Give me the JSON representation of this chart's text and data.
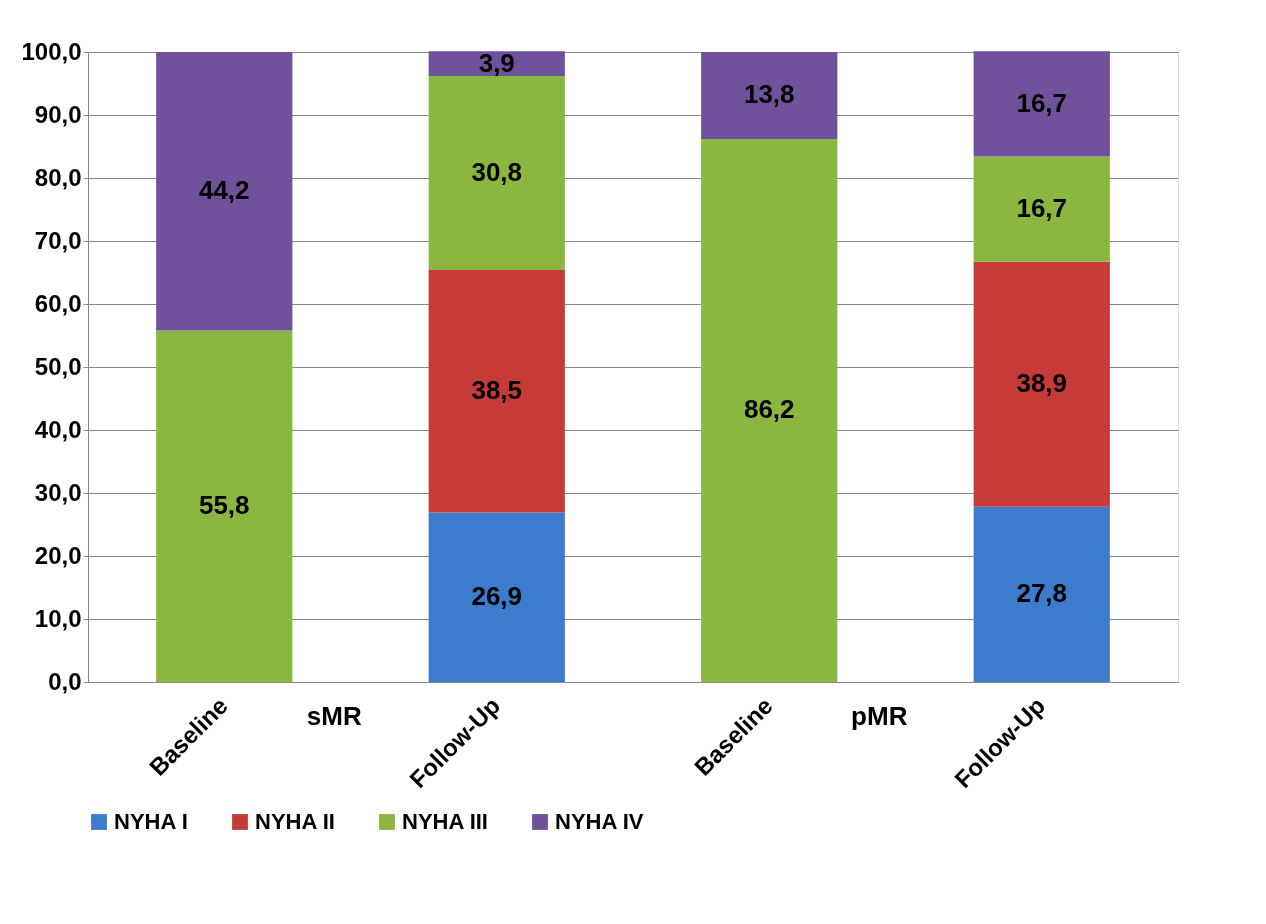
{
  "chart_data": {
    "type": "bar",
    "stacked": true,
    "categories": [
      "Baseline",
      "Follow-Up",
      "Baseline",
      "Follow-Up"
    ],
    "series": [
      {
        "name": "NYHA I",
        "color": "#3d7bcc",
        "values": [
          null,
          26.9,
          null,
          27.8
        ],
        "value_labels": [
          null,
          "26,9",
          null,
          "27,8"
        ]
      },
      {
        "name": "NYHA II",
        "color": "#c63b37",
        "values": [
          null,
          38.5,
          null,
          38.9
        ],
        "value_labels": [
          null,
          "38,5",
          null,
          "38,9"
        ]
      },
      {
        "name": "NYHA III",
        "color": "#8bb741",
        "values": [
          55.8,
          30.8,
          86.2,
          16.7
        ],
        "value_labels": [
          "55,8",
          "30,8",
          "86,2",
          "16,7"
        ]
      },
      {
        "name": "NYHA IV",
        "color": "#6f519c",
        "values": [
          44.2,
          3.9,
          13.8,
          16.7
        ],
        "value_labels": [
          "44,2",
          "3,9",
          "13,8",
          "16,7"
        ]
      }
    ],
    "ylim": [
      0,
      100
    ],
    "yticks": [
      {
        "value": 0,
        "label": "0,0"
      },
      {
        "value": 10,
        "label": "10,0"
      },
      {
        "value": 20,
        "label": "20,0"
      },
      {
        "value": 30,
        "label": "30,0"
      },
      {
        "value": 40,
        "label": "40,0"
      },
      {
        "value": 50,
        "label": "50,0"
      },
      {
        "value": 60,
        "label": "60,0"
      },
      {
        "value": 70,
        "label": "70,0"
      },
      {
        "value": 80,
        "label": "80,0"
      },
      {
        "value": 90,
        "label": "90,0"
      },
      {
        "value": 100,
        "label": "100,0"
      }
    ],
    "annotations": [
      "sMR",
      "pMR"
    ],
    "grid": "y",
    "legend": "bottom"
  }
}
